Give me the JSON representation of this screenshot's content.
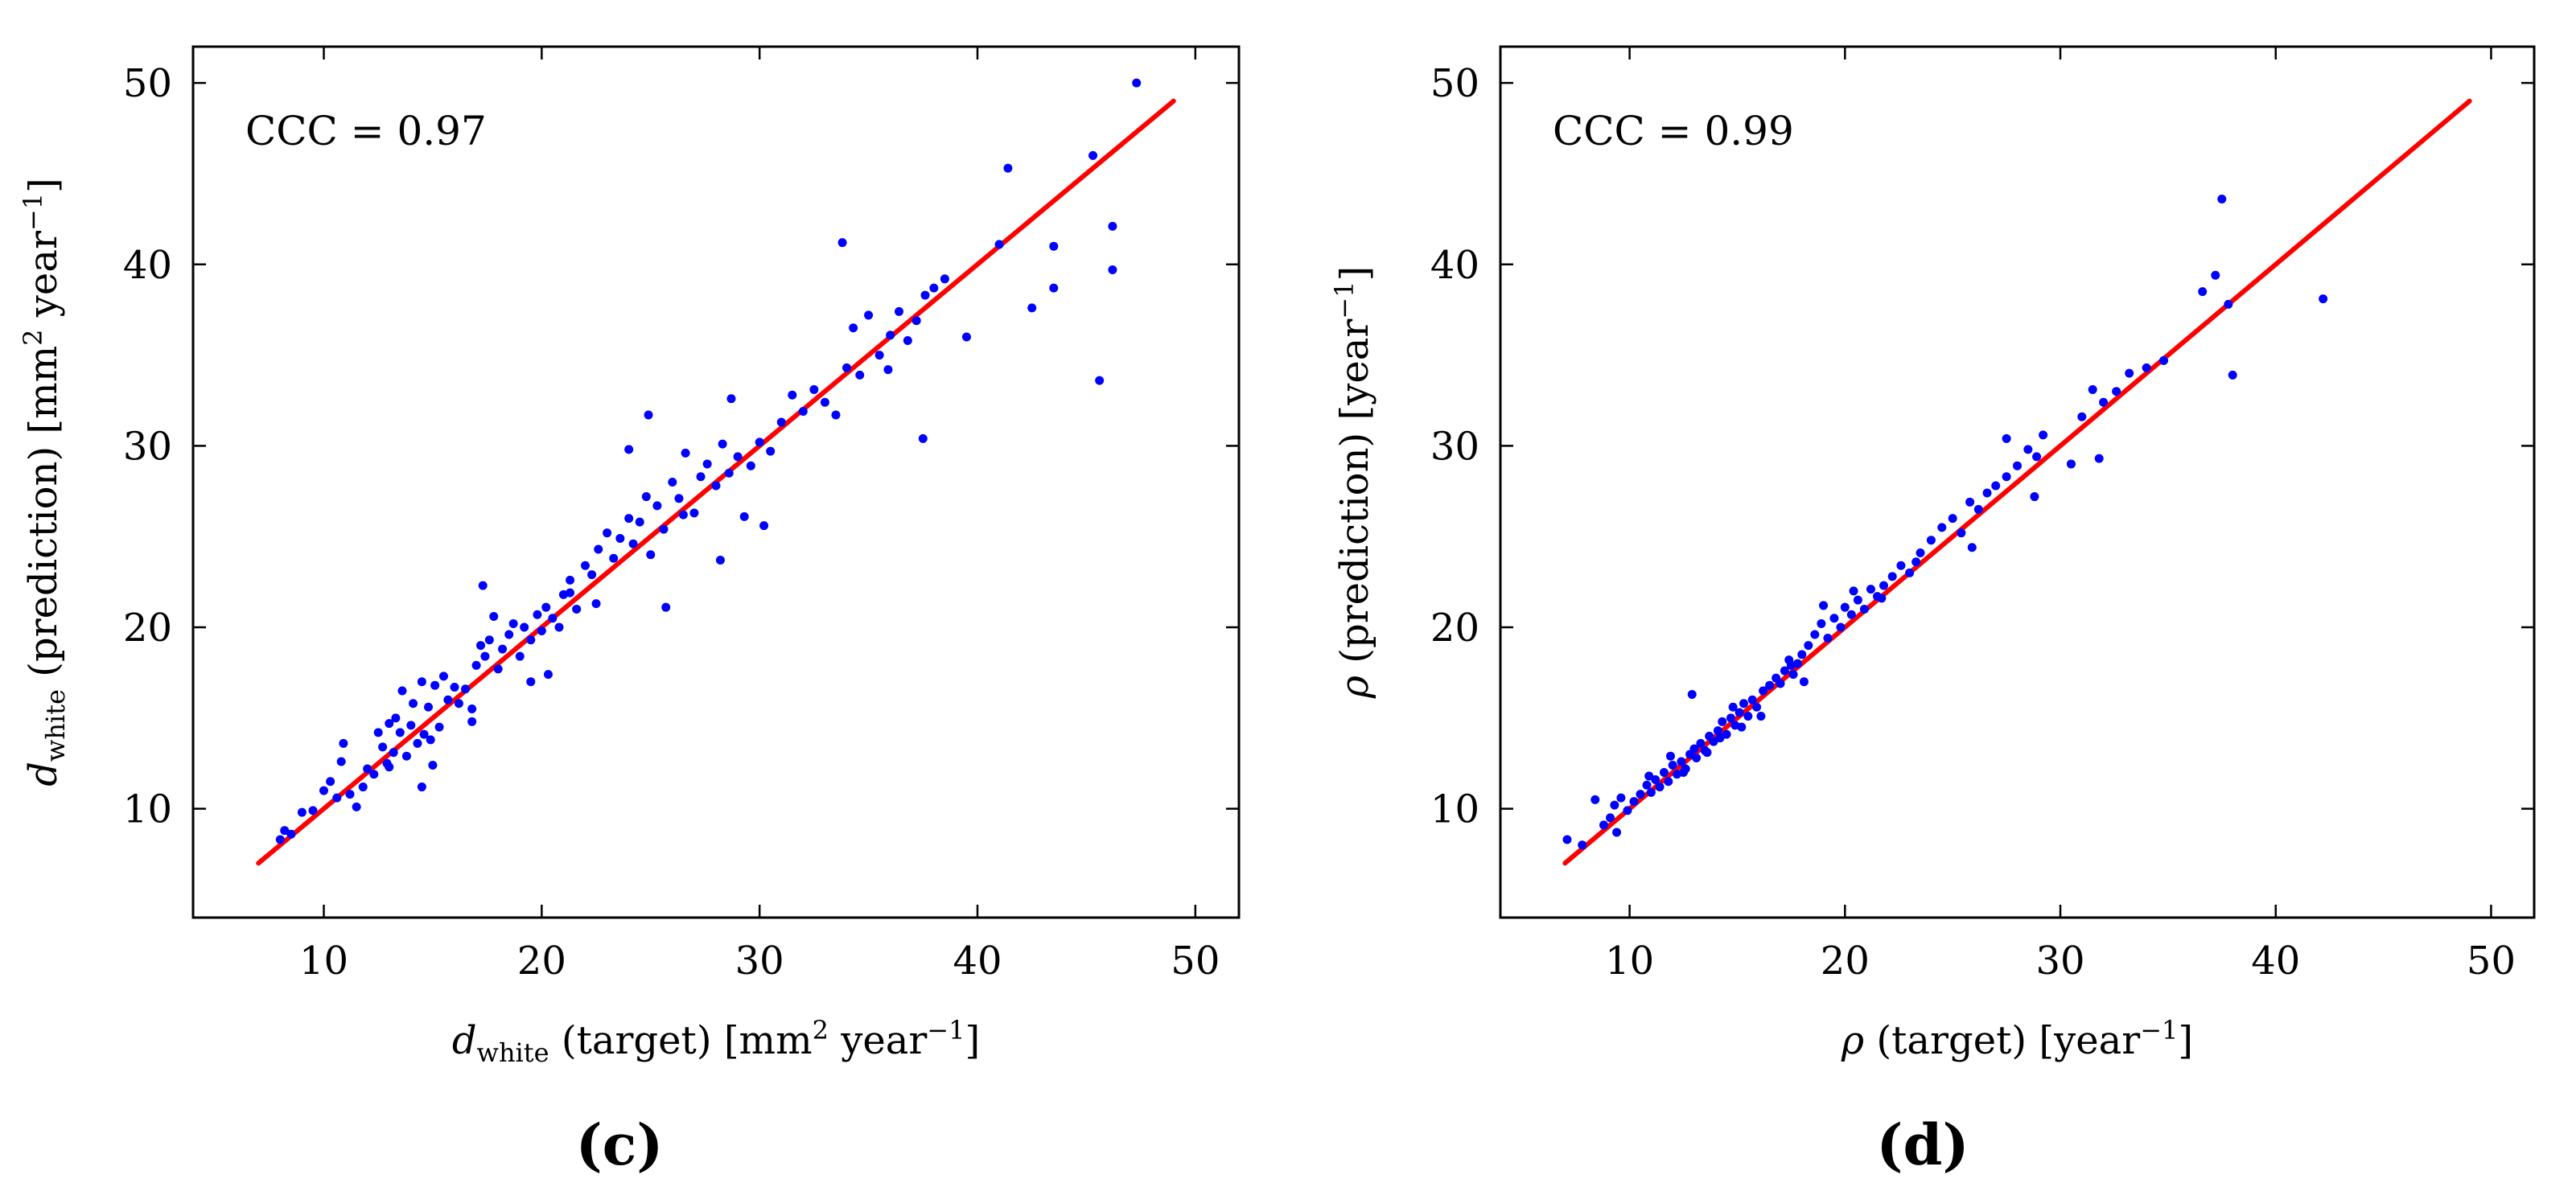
{
  "chart_data": [
    {
      "type": "scatter",
      "panel_label": "(c)",
      "annotation": "CCC = 0.97",
      "xlabel": {
        "symbol": "d",
        "subscript": "white",
        "text": " (target) [mm",
        "sup1": "2",
        "text2": " year",
        "sup2": "−1",
        "text3": "]"
      },
      "ylabel": {
        "symbol": "d",
        "subscript": "white",
        "text": " (prediction) [mm",
        "sup1": "2",
        "text2": " year",
        "sup2": "−1",
        "text3": "]"
      },
      "xlim": [
        4,
        52
      ],
      "ylim": [
        4,
        52
      ],
      "xticks": [
        10,
        20,
        30,
        40,
        50
      ],
      "yticks": [
        10,
        20,
        30,
        40,
        50
      ],
      "identity_line": {
        "color": "#ff0000",
        "from": [
          7,
          7
        ],
        "to": [
          49,
          49
        ]
      },
      "point_color": "#0000ff",
      "x": [
        8.0,
        8.2,
        8.5,
        9.0,
        9.5,
        10.0,
        10.3,
        10.6,
        10.9,
        11.2,
        11.5,
        11.8,
        12.0,
        12.3,
        12.5,
        12.7,
        12.9,
        13.0,
        13.2,
        13.3,
        13.5,
        13.6,
        13.8,
        14.0,
        14.1,
        14.3,
        14.5,
        14.6,
        14.8,
        15.0,
        15.1,
        15.3,
        15.5,
        15.7,
        16.0,
        16.2,
        16.5,
        16.8,
        17.0,
        17.2,
        17.4,
        17.6,
        17.8,
        18.0,
        18.2,
        18.5,
        18.7,
        19.0,
        19.2,
        19.5,
        19.8,
        20.0,
        20.2,
        20.5,
        20.8,
        21.0,
        21.3,
        21.6,
        22.0,
        22.3,
        22.6,
        23.0,
        23.3,
        23.6,
        24.0,
        24.2,
        24.5,
        24.8,
        25.0,
        25.3,
        25.6,
        26.0,
        26.3,
        26.6,
        27.0,
        27.3,
        27.6,
        28.0,
        28.3,
        28.6,
        29.0,
        29.3,
        29.6,
        30.0,
        30.5,
        31.0,
        31.5,
        32.0,
        32.5,
        33.0,
        33.5,
        34.0,
        34.3,
        34.6,
        35.0,
        35.5,
        36.0,
        36.4,
        36.8,
        37.2,
        37.6,
        38.0,
        38.5,
        39.5,
        41.0,
        41.4,
        42.5,
        43.5,
        43.5,
        45.3,
        45.6,
        46.2,
        46.2,
        47.3,
        10.8,
        13.0,
        14.5,
        16.8,
        17.3,
        19.5,
        21.3,
        22.5,
        24.0,
        24.9,
        26.5,
        28.7,
        30.2,
        33.8,
        35.9,
        37.5,
        14.9,
        20.3,
        25.7,
        28.2
      ],
      "y": [
        8.3,
        8.8,
        8.6,
        9.8,
        9.9,
        11.0,
        11.5,
        10.6,
        13.6,
        10.8,
        10.1,
        11.2,
        12.2,
        11.9,
        14.2,
        13.4,
        12.5,
        14.7,
        13.1,
        15.0,
        14.2,
        16.5,
        12.9,
        14.6,
        15.8,
        13.6,
        17.0,
        14.1,
        15.6,
        12.4,
        16.8,
        14.5,
        17.3,
        16.0,
        16.7,
        15.8,
        16.6,
        15.5,
        17.9,
        19.0,
        18.4,
        19.3,
        20.6,
        17.7,
        18.8,
        19.6,
        20.2,
        18.4,
        20.0,
        19.3,
        20.7,
        19.8,
        21.1,
        20.5,
        20.0,
        21.8,
        22.6,
        21.0,
        23.4,
        22.9,
        24.3,
        25.2,
        23.8,
        24.9,
        26.0,
        24.6,
        25.8,
        27.2,
        24.0,
        26.7,
        25.4,
        28.0,
        27.1,
        29.6,
        26.3,
        28.3,
        29.0,
        27.8,
        30.1,
        28.5,
        29.4,
        26.1,
        28.9,
        30.2,
        29.7,
        31.3,
        32.8,
        31.9,
        33.1,
        32.4,
        31.7,
        34.3,
        36.5,
        33.9,
        37.2,
        35.0,
        36.1,
        37.4,
        35.8,
        36.9,
        38.3,
        38.7,
        39.2,
        36.0,
        41.1,
        45.3,
        37.6,
        38.7,
        41.0,
        46.0,
        33.6,
        39.7,
        42.1,
        50.0,
        12.6,
        12.3,
        11.2,
        14.8,
        22.3,
        17.0,
        21.9,
        21.3,
        29.8,
        31.7,
        26.2,
        32.6,
        25.6,
        41.2,
        34.2,
        30.4,
        13.8,
        17.4,
        21.1,
        23.7
      ]
    },
    {
      "type": "scatter",
      "panel_label": "(d)",
      "annotation": "CCC = 0.99",
      "xlabel": {
        "symbol": "ρ",
        "text": " (target) [year",
        "sup1": "−1",
        "text2": "]"
      },
      "ylabel": {
        "symbol": "ρ",
        "text": " (prediction) [year",
        "sup1": "−1",
        "text2": "]"
      },
      "xlim": [
        4,
        52
      ],
      "ylim": [
        4,
        52
      ],
      "xticks": [
        10,
        20,
        30,
        40,
        50
      ],
      "yticks": [
        10,
        20,
        30,
        40,
        50
      ],
      "identity_line": {
        "color": "#ff0000",
        "from": [
          7,
          7
        ],
        "to": [
          49,
          49
        ]
      },
      "point_color": "#0000ff",
      "x": [
        7.1,
        7.8,
        8.4,
        8.8,
        9.1,
        9.3,
        9.6,
        9.9,
        10.2,
        10.5,
        10.8,
        11.0,
        11.2,
        11.4,
        11.6,
        11.8,
        12.0,
        12.2,
        12.4,
        12.6,
        12.8,
        13.0,
        13.1,
        13.3,
        13.5,
        13.7,
        13.9,
        14.1,
        14.3,
        14.5,
        14.7,
        14.9,
        15.1,
        15.3,
        15.5,
        15.7,
        15.9,
        16.2,
        16.5,
        16.8,
        17.0,
        17.2,
        17.4,
        17.6,
        17.8,
        18.0,
        18.3,
        18.6,
        18.9,
        19.2,
        19.5,
        19.8,
        20.0,
        20.3,
        20.6,
        20.9,
        21.2,
        21.5,
        21.8,
        22.2,
        22.6,
        23.0,
        23.5,
        24.0,
        24.5,
        25.0,
        25.4,
        25.8,
        26.2,
        26.6,
        27.0,
        27.5,
        28.0,
        28.5,
        28.9,
        29.2,
        30.5,
        31.0,
        31.5,
        32.0,
        32.6,
        33.2,
        34.0,
        34.8,
        36.6,
        37.2,
        37.5,
        37.8,
        38.0,
        42.2,
        12.9,
        15.2,
        19.0,
        25.9,
        27.5,
        28.8,
        31.8,
        17.5,
        20.4,
        9.4,
        11.9,
        13.6,
        14.8,
        16.1,
        18.1,
        21.7,
        23.3,
        10.9,
        12.5,
        14.2
      ],
      "y": [
        8.3,
        8.0,
        10.5,
        9.1,
        9.5,
        10.2,
        10.6,
        9.9,
        10.4,
        10.8,
        11.3,
        10.9,
        11.6,
        11.2,
        12.0,
        11.5,
        12.4,
        11.9,
        12.6,
        12.2,
        13.0,
        13.3,
        12.8,
        13.6,
        13.2,
        14.0,
        13.7,
        14.3,
        14.8,
        14.1,
        15.0,
        14.6,
        15.3,
        15.8,
        15.1,
        16.0,
        15.6,
        16.5,
        16.8,
        17.2,
        16.9,
        17.6,
        18.2,
        17.4,
        18.0,
        18.5,
        19.0,
        19.6,
        20.2,
        19.4,
        20.5,
        20.0,
        21.1,
        20.7,
        21.5,
        21.0,
        22.1,
        21.7,
        22.3,
        22.8,
        23.4,
        23.0,
        24.1,
        24.8,
        25.5,
        26.0,
        25.2,
        26.9,
        26.5,
        27.4,
        27.8,
        28.3,
        28.9,
        29.8,
        29.4,
        30.6,
        29.0,
        31.6,
        33.1,
        32.4,
        33.0,
        34.0,
        34.3,
        34.7,
        38.5,
        39.4,
        43.6,
        37.8,
        33.9,
        38.1,
        16.3,
        14.5,
        21.2,
        24.4,
        30.4,
        27.2,
        29.3,
        17.9,
        22.0,
        8.7,
        12.9,
        13.1,
        15.6,
        15.1,
        17.0,
        21.6,
        23.6,
        11.8,
        12.0,
        13.9
      ]
    }
  ]
}
